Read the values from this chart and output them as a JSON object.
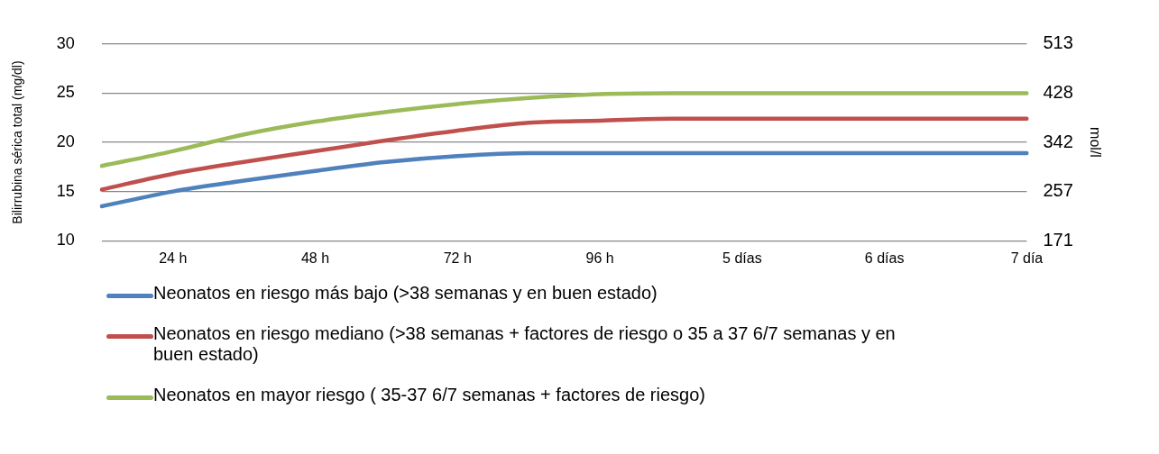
{
  "chart_data": {
    "type": "line",
    "ylabel": "Bilirrubina sérica total (mg/dl)",
    "y2label": "mol/l",
    "categories": [
      null,
      "24 h",
      null,
      "48 h",
      null,
      "72 h",
      null,
      "96 h",
      null,
      "5 días",
      null,
      "6 días",
      null,
      "7 día"
    ],
    "ylim": [
      10,
      30
    ],
    "yticks": [
      10,
      15,
      20,
      25,
      30
    ],
    "y2lim": [
      171,
      513
    ],
    "y2ticks": [
      171,
      257,
      342,
      428,
      513
    ],
    "grid": "y",
    "legend": "bottom",
    "marker": "none",
    "line_style": "solid",
    "series": [
      {
        "name": "Neonatos en riesgo más bajo (>38 semanas y en buen estado)",
        "color": "#4f81bd",
        "values": [
          13.5,
          15.0,
          16.1,
          17.1,
          18.0,
          18.6,
          18.9,
          18.9,
          18.9,
          18.9,
          18.9,
          18.9,
          18.9,
          18.9
        ]
      },
      {
        "name": "Neonatos en riesgo mediano (>38 semanas + factores de riesgo o 35 a 37 6/7 semanas y en buen estado)",
        "color": "#c0504d",
        "values": [
          15.2,
          16.8,
          18.0,
          19.1,
          20.2,
          21.2,
          22.0,
          22.2,
          22.4,
          22.4,
          22.4,
          22.4,
          22.4,
          22.4
        ]
      },
      {
        "name": "Neonatos en mayor riesgo ( 35-37 6/7 semanas + factores de riesgo)",
        "color": "#9bbb59",
        "values": [
          17.6,
          19.1,
          20.8,
          22.1,
          23.1,
          23.9,
          24.5,
          24.9,
          25.0,
          25.0,
          25.0,
          25.0,
          25.0,
          25.0
        ]
      }
    ]
  }
}
